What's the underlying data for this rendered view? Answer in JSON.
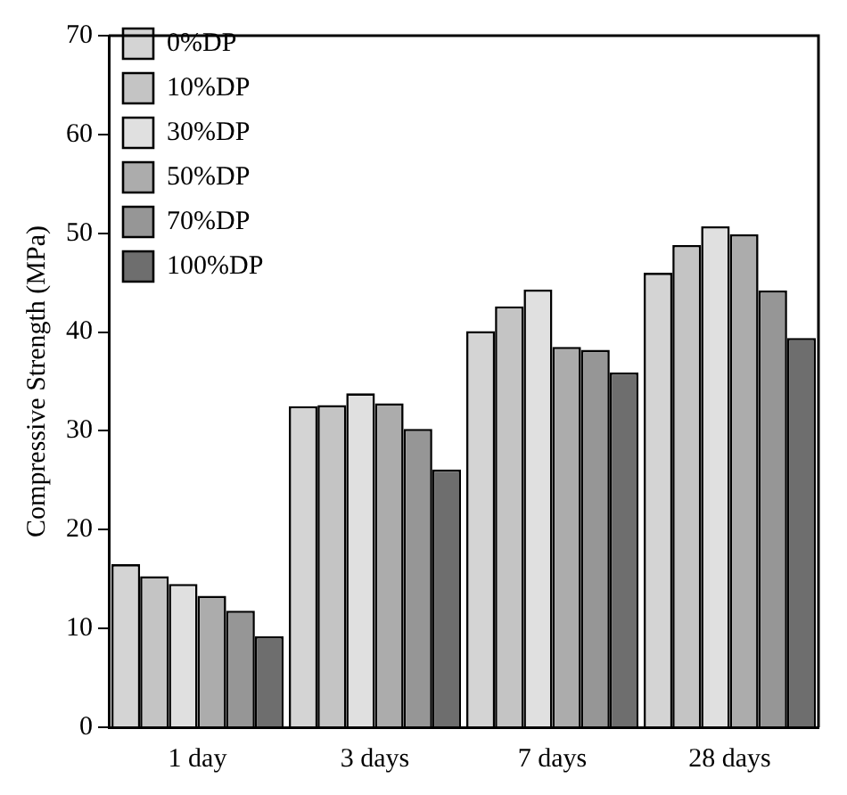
{
  "chart_data": {
    "type": "bar",
    "ylabel": "Compressive Strength (MPa)",
    "categories": [
      "1 day",
      "3 days",
      "7 days",
      "28 days"
    ],
    "series": [
      {
        "name": "0%DP",
        "color": "#d4d4d4",
        "values": [
          16.5,
          32.5,
          40.1,
          46.0
        ]
      },
      {
        "name": "10%DP",
        "color": "#c4c4c4",
        "values": [
          15.3,
          32.6,
          42.6,
          48.8
        ]
      },
      {
        "name": "30%DP",
        "color": "#e0e0e0",
        "values": [
          14.5,
          33.8,
          44.3,
          50.7
        ]
      },
      {
        "name": "50%DP",
        "color": "#acacac",
        "values": [
          13.3,
          32.8,
          38.5,
          49.9
        ]
      },
      {
        "name": "70%DP",
        "color": "#969696",
        "values": [
          11.8,
          30.2,
          38.2,
          44.2
        ]
      },
      {
        "name": "100%DP",
        "color": "#6e6e6e",
        "values": [
          9.2,
          26.1,
          35.9,
          39.4
        ]
      }
    ],
    "ylim": [
      0,
      70
    ],
    "yticks": [
      0,
      10,
      20,
      30,
      40,
      50,
      60,
      70
    ],
    "grid": false,
    "legend": "top left"
  }
}
